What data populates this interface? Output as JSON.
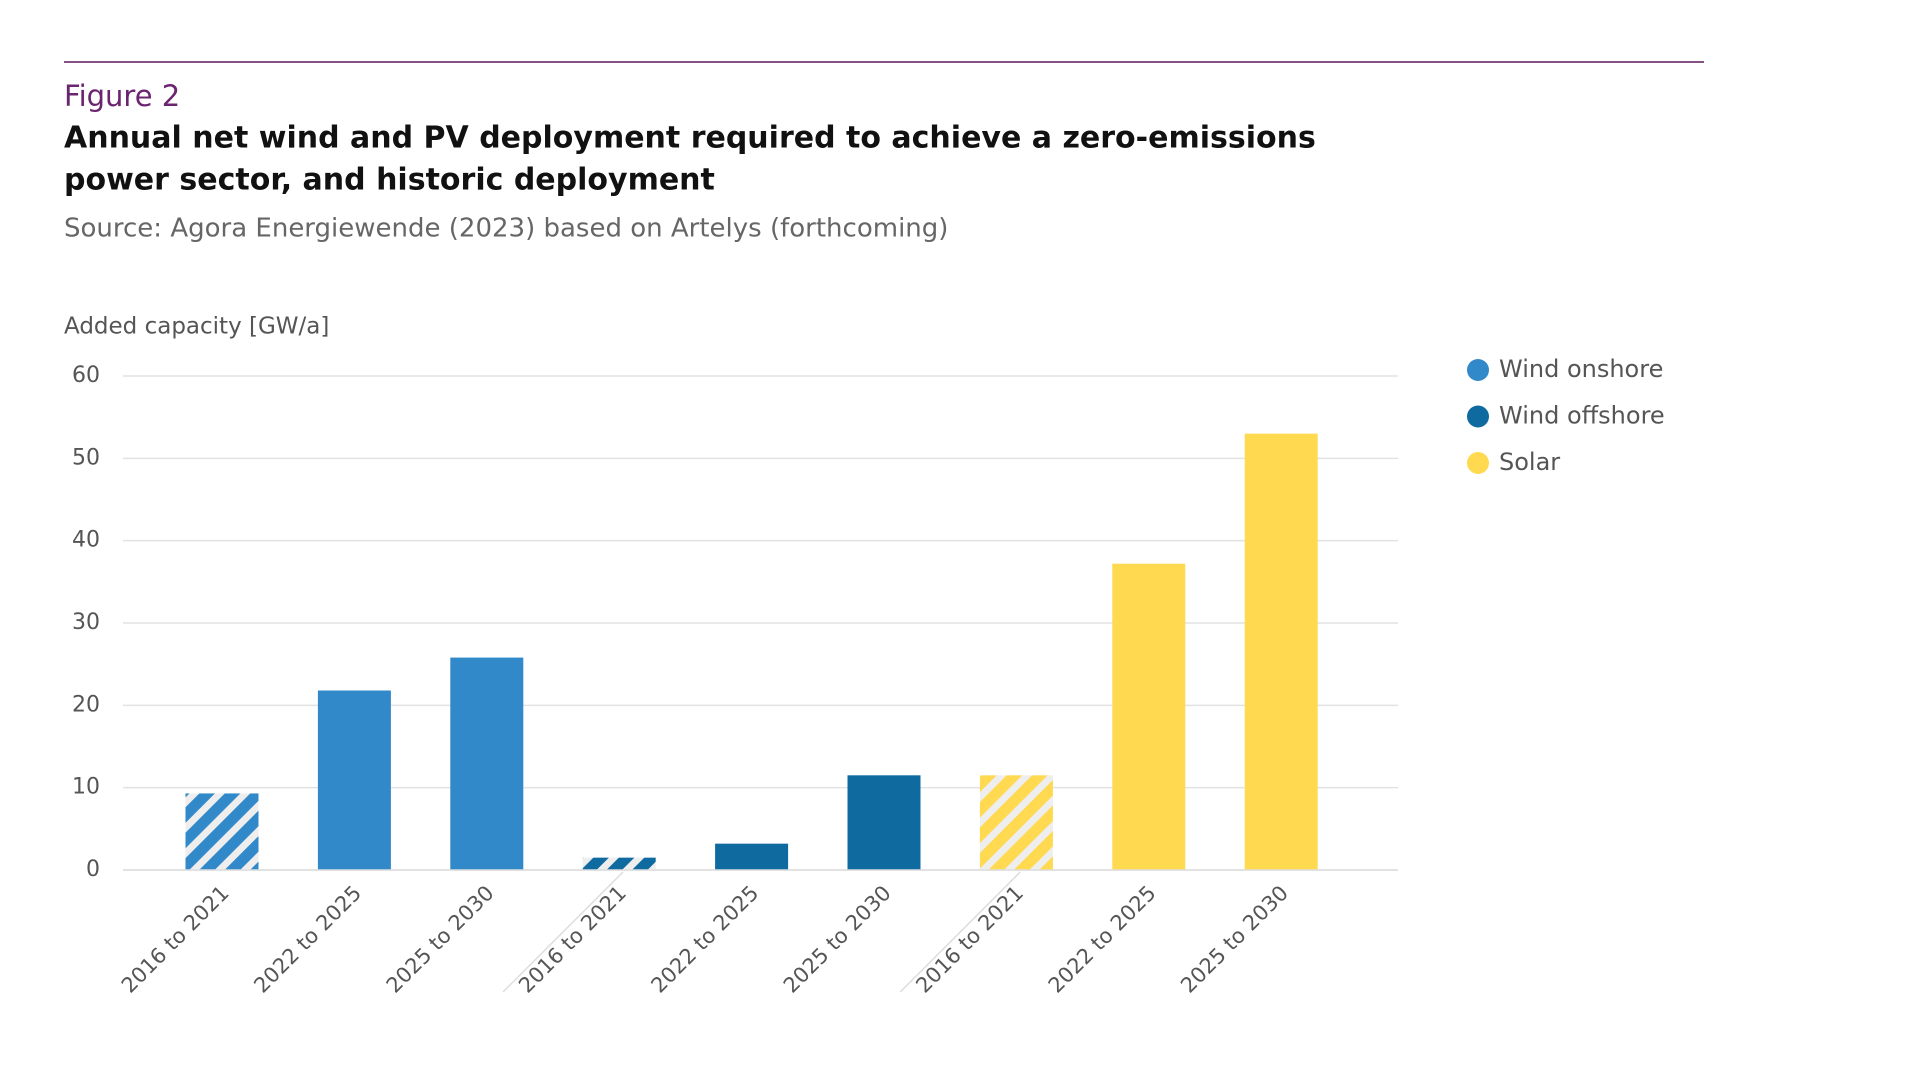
{
  "header": {
    "figure": "Figure 2",
    "title": [
      "Annual net wind and PV deployment required to achieve a zero-emissions",
      "power sector, and historic deployment"
    ],
    "source": "Source: Agora Energiewende (2023) based on Artelys (forthcoming)"
  },
  "chart_data": {
    "type": "bar",
    "y_label": "Added capacity [GW/a]",
    "categories": [
      "2016 to 2021",
      "2022 to 2025",
      "2025 to 2030"
    ],
    "series": [
      {
        "name": "Wind onshore",
        "color": "#3289c9",
        "values": [
          9.3,
          21.8,
          25.8
        ],
        "pattern": [
          "hatched",
          "solid",
          "solid"
        ]
      },
      {
        "name": "Wind offshore",
        "color": "#0f6aa0",
        "values": [
          1.5,
          3.2,
          11.5
        ],
        "pattern": [
          "hatched",
          "solid",
          "solid"
        ]
      },
      {
        "name": "Solar",
        "color": "#ffd94f",
        "values": [
          11.5,
          37.2,
          53
        ],
        "pattern": [
          "hatched",
          "solid",
          "solid"
        ]
      }
    ],
    "ylim": [
      0,
      60
    ],
    "yticks": [
      0,
      10,
      20,
      30,
      40,
      50,
      60
    ],
    "grid": true,
    "legend": "right"
  }
}
